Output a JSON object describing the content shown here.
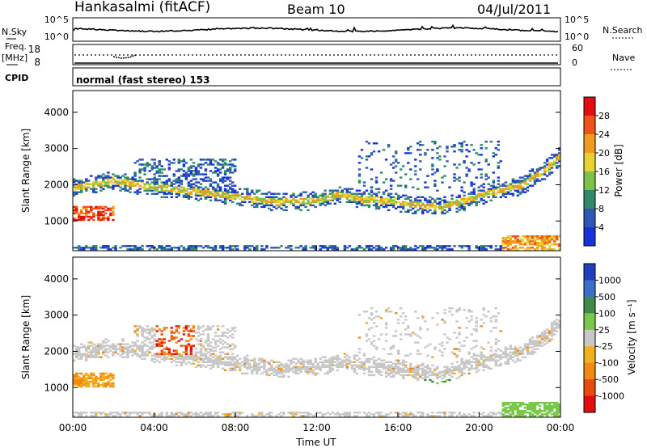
{
  "header": {
    "station": "Hankasalmi (fitACF)",
    "beam": "Beam 10",
    "date": "04/Jul/2011"
  },
  "status_panels": {
    "nsky_label": "N.Sky",
    "nsearch_label": "N.Search",
    "nsky_ticks": [
      "10^5",
      "10^0"
    ],
    "nsearch_ticks": [
      "10^5",
      "10^0"
    ],
    "freq_label_line1": "Freq.",
    "freq_label_line2": "[MHz]",
    "freq_ticks": [
      "18",
      "8"
    ],
    "nave_label": "Nave",
    "nave_ticks": [
      "60",
      "0"
    ],
    "cpid_label": "CPID",
    "cpid_text": "normal (fast stereo) 153"
  },
  "chart_data": [
    {
      "type": "heatmap",
      "name": "power",
      "ylabel": "Slant Range [km]",
      "xlabel": "",
      "y_ticks": [
        "1000",
        "2000",
        "3000",
        "4000"
      ],
      "ylim": [
        180,
        4600
      ],
      "x_ticks": [
        "00:00",
        "04:00",
        "08:00",
        "12:00",
        "16:00",
        "20:00",
        "00:00"
      ],
      "colorbar_label": "Power [dB]",
      "colorbar_ticks": [
        "4",
        "8",
        "12",
        "16",
        "20",
        "24",
        "28"
      ],
      "colors": [
        "#1433d8",
        "#2f57b8",
        "#2f8a6a",
        "#7ec24a",
        "#e8d230",
        "#f39a20",
        "#f0521a",
        "#e01010"
      ]
    },
    {
      "type": "heatmap",
      "name": "velocity",
      "ylabel": "Slant Range [km]",
      "xlabel": "Time UT",
      "y_ticks": [
        "1000",
        "2000",
        "3000",
        "4000"
      ],
      "ylim": [
        180,
        4600
      ],
      "x_ticks": [
        "00:00",
        "04:00",
        "08:00",
        "12:00",
        "16:00",
        "20:00",
        "00:00"
      ],
      "colorbar_label": "Velocity [m s⁻¹]",
      "colorbar_ticks": [
        "1000",
        "500",
        "100",
        "25",
        "-25",
        "-100",
        "-500",
        "-1000"
      ],
      "colors": [
        "#1f3fbf",
        "#3b6fc8",
        "#3f8a4a",
        "#7ac84a",
        "#c8c8c8",
        "#f2b020",
        "#f08a10",
        "#e84a10",
        "#e01010"
      ]
    }
  ]
}
